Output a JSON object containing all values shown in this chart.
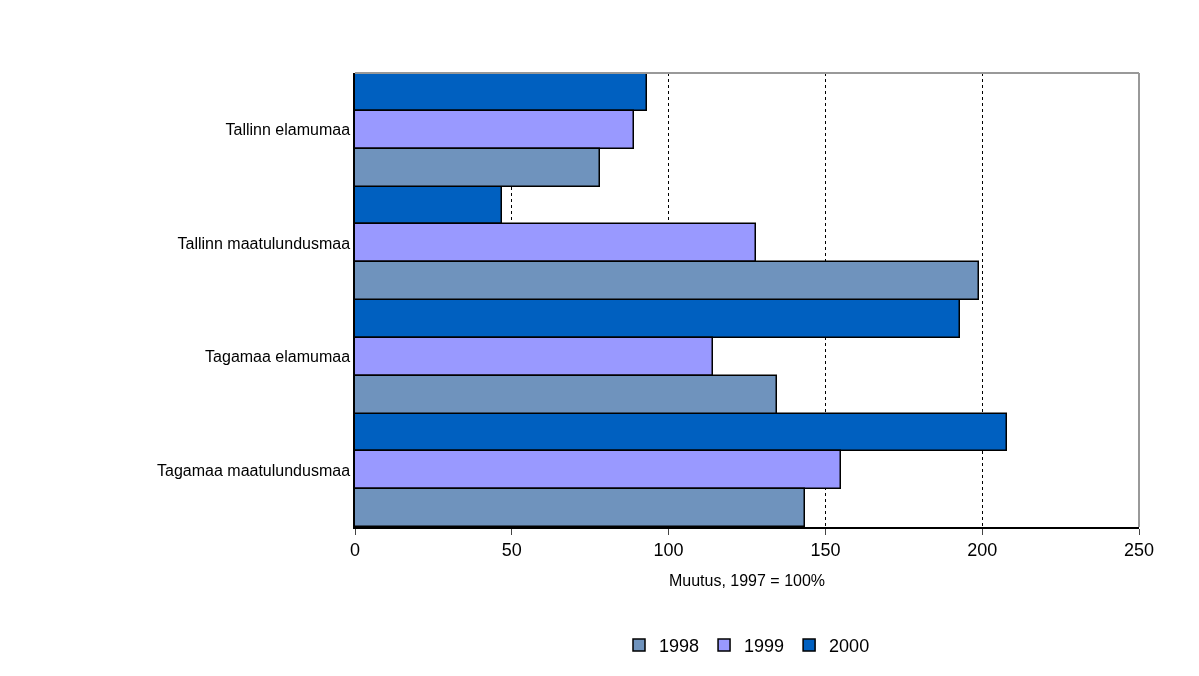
{
  "chart_data": {
    "type": "bar",
    "orientation": "horizontal",
    "xlabel": "Muutus, 1997 = 100%",
    "categories": [
      "Tallinn elamumaa",
      "Tallinn maatulundusmaa",
      "Tagamaa elamumaa",
      "Tagamaa maatulundusmaa"
    ],
    "series": [
      {
        "name": "1998",
        "color": "#6f93bd",
        "values": [
          78,
          199,
          134.5,
          143.5
        ]
      },
      {
        "name": "1999",
        "color": "#9999ff",
        "values": [
          89,
          128,
          114,
          155
        ]
      },
      {
        "name": "2000",
        "color": "#0060c0",
        "values": [
          93,
          47,
          193,
          208
        ]
      }
    ],
    "xlim": [
      0,
      250
    ],
    "xticks": [
      0,
      50,
      100,
      150,
      200,
      250
    ],
    "grid": "x",
    "legend": "bottom"
  }
}
